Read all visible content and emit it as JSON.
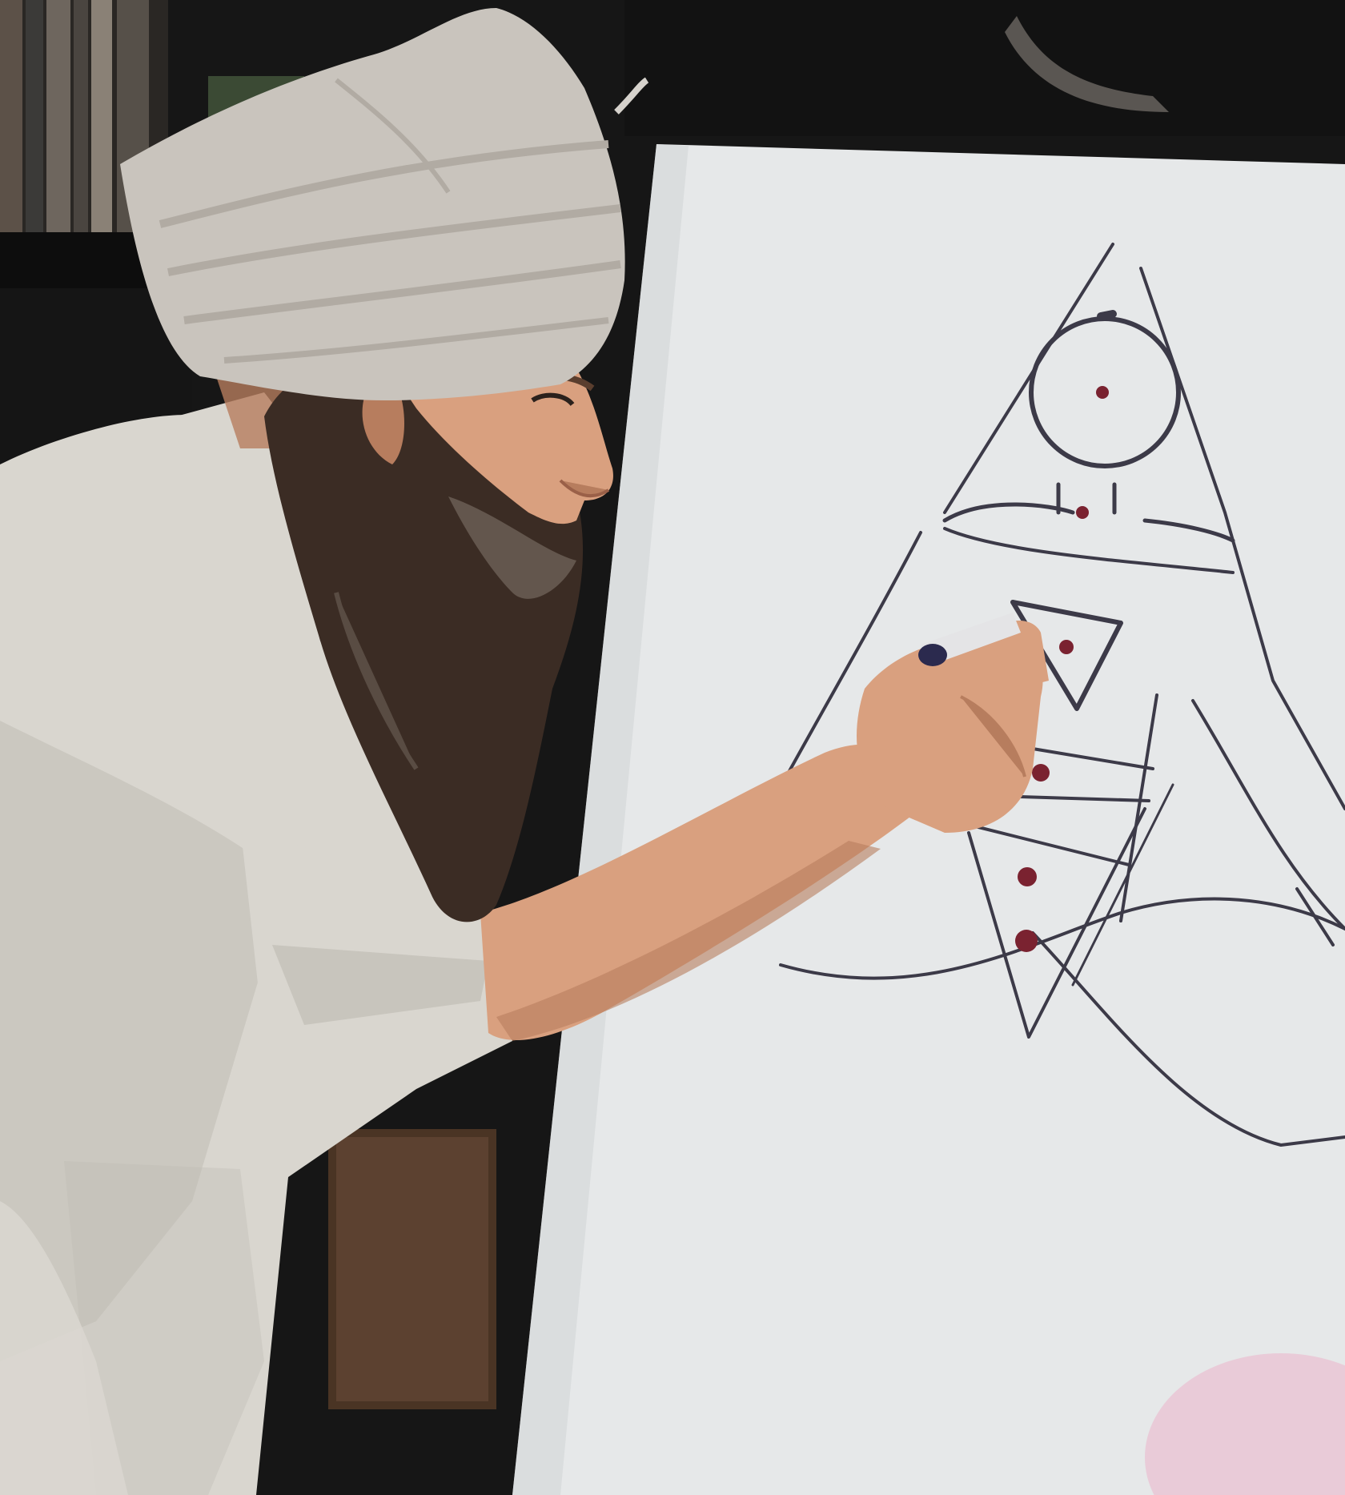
{
  "scene": {
    "description_hidden": "",
    "colors": {
      "background_dark": "#161616",
      "shelf_dark": "#0f0f0f",
      "board": "#e6e8e9",
      "board_shadow": "#cfd3d5",
      "turban": "#c9c4bd",
      "turban_fold": "#b1aba3",
      "shirt": "#d9d6cf",
      "shirt_shadow": "#bdb9b1",
      "skin": "#d9a07f",
      "skin_shadow": "#b77d5e",
      "beard": "#3b2c24",
      "beard_grey": "#6e6258",
      "drawing_line": "#3c3a48",
      "drawing_red": "#7a2230",
      "marker_body": "#e4e4e6",
      "marker_cap": "#2b2a4e",
      "pink_corner": "#e9c8d6"
    },
    "icons": {
      "drawing": "chakra-diagram-icon",
      "marker": "marker-icon",
      "person": "person-icon"
    }
  }
}
